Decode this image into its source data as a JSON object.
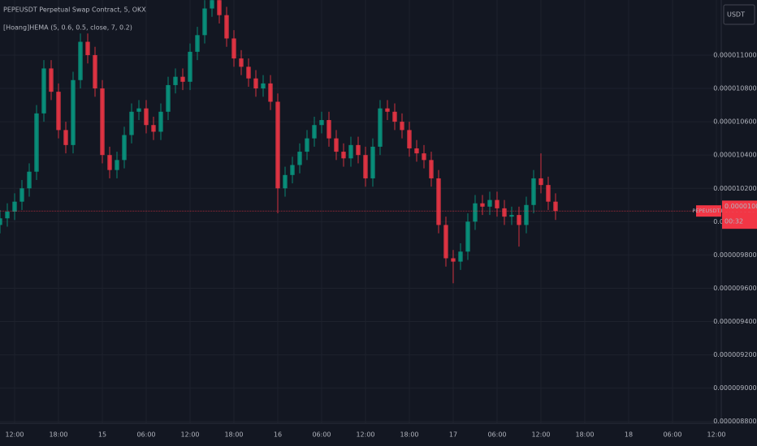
{
  "chart_data": {
    "type": "candlestick",
    "title": "PEPEUSDT Perpetual Swap Contract, 5, OKX",
    "subtitle": "[Hoang]HEMA (5, 0.6, 0.5, close, 7, 0.2)",
    "currency": "USDT",
    "symbol_tag": "PEPEUSDT.P",
    "countdown": "00:32",
    "last_price": {
      "value": 1.0064e-05,
      "label": "0.00001006400"
    },
    "indicator_price": {
      "value": 1.009229e-05,
      "label": "0.00001009229"
    },
    "up_color": "#089981",
    "down_color": "#f23645",
    "grid": true,
    "x": [
      10,
      11,
      12,
      13,
      14,
      15,
      16,
      17,
      18,
      19,
      20,
      21,
      22,
      23,
      24,
      25,
      26,
      27,
      28,
      29,
      30,
      31,
      32,
      33,
      34,
      35,
      36,
      37,
      38,
      39,
      40,
      41,
      42,
      43,
      44,
      45,
      46,
      47,
      48,
      49,
      50,
      51,
      52,
      53,
      54,
      55,
      56,
      57,
      58,
      59,
      60,
      61,
      62,
      63,
      64,
      65,
      66,
      67,
      68,
      69,
      70,
      71,
      72,
      73,
      74,
      75,
      76,
      77,
      78,
      79,
      80,
      81,
      82,
      83,
      84,
      85,
      86
    ],
    "series": [
      {
        "name": "PEPEUSDT.P",
        "ohlc": [
          [
            9.98e-06,
            1.007e-05,
            9.93e-06,
            1.002e-05
          ],
          [
            1.002e-05,
            1.011e-05,
            9.97e-06,
            1.006e-05
          ],
          [
            1.006e-05,
            1.017e-05,
            1.001e-05,
            1.012e-05
          ],
          [
            1.012e-05,
            1.025e-05,
            1.007e-05,
            1.02e-05
          ],
          [
            1.02e-05,
            1.035e-05,
            1.015e-05,
            1.03e-05
          ],
          [
            1.03e-05,
            1.07e-05,
            1.025e-05,
            1.065e-05
          ],
          [
            1.065e-05,
            1.097e-05,
            1.06e-05,
            1.092e-05
          ],
          [
            1.092e-05,
            1.097e-05,
            1.073e-05,
            1.078e-05
          ],
          [
            1.078e-05,
            1.083e-05,
            1.05e-05,
            1.055e-05
          ],
          [
            1.055e-05,
            1.06e-05,
            1.041e-05,
            1.046e-05
          ],
          [
            1.046e-05,
            1.09e-05,
            1.041e-05,
            1.085e-05
          ],
          [
            1.085e-05,
            1.113e-05,
            1.08e-05,
            1.108e-05
          ],
          [
            1.108e-05,
            1.113e-05,
            1.095e-05,
            1.1e-05
          ],
          [
            1.1e-05,
            1.105e-05,
            1.075e-05,
            1.08e-05
          ],
          [
            1.08e-05,
            1.085e-05,
            1.035e-05,
            1.04e-05
          ],
          [
            1.04e-05,
            1.045e-05,
            1.026e-05,
            1.031e-05
          ],
          [
            1.031e-05,
            1.042e-05,
            1.026e-05,
            1.037e-05
          ],
          [
            1.037e-05,
            1.057e-05,
            1.032e-05,
            1.052e-05
          ],
          [
            1.052e-05,
            1.071e-05,
            1.047e-05,
            1.066e-05
          ],
          [
            1.066e-05,
            1.073e-05,
            1.061e-05,
            1.068e-05
          ],
          [
            1.068e-05,
            1.073e-05,
            1.053e-05,
            1.058e-05
          ],
          [
            1.058e-05,
            1.063e-05,
            1.049e-05,
            1.054e-05
          ],
          [
            1.054e-05,
            1.071e-05,
            1.049e-05,
            1.066e-05
          ],
          [
            1.066e-05,
            1.087e-05,
            1.061e-05,
            1.082e-05
          ],
          [
            1.082e-05,
            1.092e-05,
            1.077e-05,
            1.087e-05
          ],
          [
            1.087e-05,
            1.092e-05,
            1.079e-05,
            1.084e-05
          ],
          [
            1.084e-05,
            1.107e-05,
            1.079e-05,
            1.102e-05
          ],
          [
            1.102e-05,
            1.117e-05,
            1.097e-05,
            1.112e-05
          ],
          [
            1.112e-05,
            1.133e-05,
            1.107e-05,
            1.128e-05
          ],
          [
            1.128e-05,
            1.138e-05,
            1.123e-05,
            1.133e-05
          ],
          [
            1.133e-05,
            1.138e-05,
            1.119e-05,
            1.124e-05
          ],
          [
            1.124e-05,
            1.129e-05,
            1.105e-05,
            1.11e-05
          ],
          [
            1.11e-05,
            1.115e-05,
            1.093e-05,
            1.098e-05
          ],
          [
            1.098e-05,
            1.103e-05,
            1.088e-05,
            1.093e-05
          ],
          [
            1.093e-05,
            1.098e-05,
            1.081e-05,
            1.086e-05
          ],
          [
            1.086e-05,
            1.091e-05,
            1.075e-05,
            1.08e-05
          ],
          [
            1.08e-05,
            1.088e-05,
            1.075e-05,
            1.083e-05
          ],
          [
            1.083e-05,
            1.088e-05,
            1.067e-05,
            1.072e-05
          ],
          [
            1.072e-05,
            1.077e-05,
            1.005e-05,
            1.02e-05
          ],
          [
            1.02e-05,
            1.033e-05,
            1.015e-05,
            1.028e-05
          ],
          [
            1.028e-05,
            1.039e-05,
            1.023e-05,
            1.034e-05
          ],
          [
            1.034e-05,
            1.047e-05,
            1.029e-05,
            1.042e-05
          ],
          [
            1.042e-05,
            1.055e-05,
            1.037e-05,
            1.05e-05
          ],
          [
            1.05e-05,
            1.063e-05,
            1.045e-05,
            1.058e-05
          ],
          [
            1.058e-05,
            1.066e-05,
            1.053e-05,
            1.061e-05
          ],
          [
            1.061e-05,
            1.066e-05,
            1.045e-05,
            1.05e-05
          ],
          [
            1.05e-05,
            1.055e-05,
            1.037e-05,
            1.042e-05
          ],
          [
            1.042e-05,
            1.047e-05,
            1.033e-05,
            1.038e-05
          ],
          [
            1.038e-05,
            1.051e-05,
            1.033e-05,
            1.046e-05
          ],
          [
            1.046e-05,
            1.051e-05,
            1.035e-05,
            1.04e-05
          ],
          [
            1.04e-05,
            1.045e-05,
            1.021e-05,
            1.026e-05
          ],
          [
            1.026e-05,
            1.05e-05,
            1.021e-05,
            1.045e-05
          ],
          [
            1.045e-05,
            1.073e-05,
            1.04e-05,
            1.068e-05
          ],
          [
            1.068e-05,
            1.073e-05,
            1.061e-05,
            1.066e-05
          ],
          [
            1.066e-05,
            1.071e-05,
            1.055e-05,
            1.06e-05
          ],
          [
            1.06e-05,
            1.065e-05,
            1.05e-05,
            1.055e-05
          ],
          [
            1.055e-05,
            1.06e-05,
            1.039e-05,
            1.044e-05
          ],
          [
            1.044e-05,
            1.049e-05,
            1.036e-05,
            1.041e-05
          ],
          [
            1.041e-05,
            1.046e-05,
            1.032e-05,
            1.037e-05
          ],
          [
            1.037e-05,
            1.042e-05,
            1.021e-05,
            1.026e-05
          ],
          [
            1.026e-05,
            1.031e-05,
            9.93e-06,
            9.98e-06
          ],
          [
            9.98e-06,
            1.003e-05,
            9.73e-06,
            9.78e-06
          ],
          [
            9.78e-06,
            9.83e-06,
            9.63e-06,
            9.76e-06
          ],
          [
            9.76e-06,
            9.87e-06,
            9.71e-06,
            9.82e-06
          ],
          [
            9.82e-06,
            1.005e-05,
            9.77e-06,
            1e-05
          ],
          [
            1e-05,
            1.016e-05,
            9.95e-06,
            1.011e-05
          ],
          [
            1.011e-05,
            1.016e-05,
            1.004e-05,
            1.009e-05
          ],
          [
            1.009e-05,
            1.018e-05,
            1.004e-05,
            1.013e-05
          ],
          [
            1.013e-05,
            1.018e-05,
            1.003e-05,
            1.008e-05
          ],
          [
            1.008e-05,
            1.013e-05,
            9.98e-06,
            1.003e-05
          ],
          [
            1.003e-05,
            1.009e-05,
            9.98e-06,
            1.004e-05
          ],
          [
            1.004e-05,
            1.009e-05,
            9.85e-06,
            9.98e-06
          ],
          [
            9.98e-06,
            1.015e-05,
            9.93e-06,
            1.01e-05
          ],
          [
            1.01e-05,
            1.031e-05,
            1.005e-05,
            1.026e-05
          ],
          [
            1.026e-05,
            1.041e-05,
            1.017e-05,
            1.022e-05
          ],
          [
            1.022e-05,
            1.027e-05,
            1.007e-05,
            1.012e-05
          ],
          [
            1.012e-05,
            1.017e-05,
            1.001e-05,
            1.0064e-05
          ]
        ]
      }
    ],
    "xlim": [
      10,
      108.67
    ],
    "xticks": [
      {
        "value": 12,
        "label": "12:00"
      },
      {
        "value": 18,
        "label": "18:00"
      },
      {
        "value": 24,
        "label": "15"
      },
      {
        "value": 30,
        "label": "06:00"
      },
      {
        "value": 36,
        "label": "12:00"
      },
      {
        "value": 42,
        "label": "18:00"
      },
      {
        "value": 48,
        "label": "16"
      },
      {
        "value": 54,
        "label": "06:00"
      },
      {
        "value": 60,
        "label": "12:00"
      },
      {
        "value": 66,
        "label": "18:00"
      },
      {
        "value": 72,
        "label": "17"
      },
      {
        "value": 78,
        "label": "06:00"
      },
      {
        "value": 84,
        "label": "12:00"
      },
      {
        "value": 90,
        "label": "18:00"
      },
      {
        "value": 96,
        "label": "18"
      },
      {
        "value": 102,
        "label": "06:00"
      },
      {
        "value": 108,
        "label": "12:00"
      }
    ],
    "ylim": [
      8.789e-06,
      1.1331e-05
    ],
    "yticks": [
      {
        "value": 8.8e-06,
        "label": "0.00000880000"
      },
      {
        "value": 9e-06,
        "label": "0.00000900000"
      },
      {
        "value": 9.2e-06,
        "label": "0.00000920000"
      },
      {
        "value": 9.4e-06,
        "label": "0.00000940000"
      },
      {
        "value": 9.6e-06,
        "label": "0.00000960000"
      },
      {
        "value": 9.8e-06,
        "label": "0.00000980000"
      },
      {
        "value": 1e-05,
        "label": "0.00001000000"
      },
      {
        "value": 1.02e-05,
        "label": "0.00001020000"
      },
      {
        "value": 1.04e-05,
        "label": "0.00001040000"
      },
      {
        "value": 1.06e-05,
        "label": "0.00001060000"
      },
      {
        "value": 1.08e-05,
        "label": "0.00001080000"
      },
      {
        "value": 1.1e-05,
        "label": "0.00001100000"
      }
    ]
  }
}
